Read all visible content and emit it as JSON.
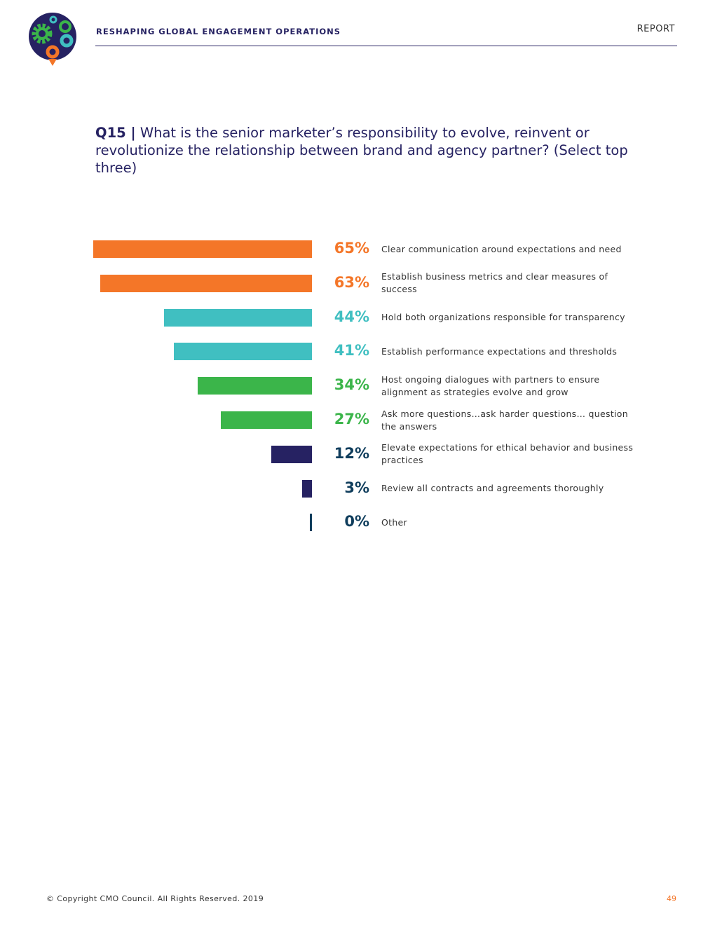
{
  "header": {
    "title": "RESHAPING GLOBAL ENGAGEMENT OPERATIONS",
    "section": "REPORT"
  },
  "question": {
    "number": "Q15 |",
    "text": " What is the senior marketer’s responsibility to evolve, reinvent or revolutionize the relationship between brand and agency partner? (Select top three)"
  },
  "chart_data": {
    "type": "bar",
    "orientation": "horizontal",
    "xlim": [
      0,
      65
    ],
    "categories": [
      "Clear communication around expectations and need",
      "Establish business metrics and clear measures of success",
      "Hold both organizations responsible for transparency",
      "Establish performance expectations and thresholds",
      "Host ongoing dialogues with partners to ensure alignment as strategies evolve and grow",
      "Ask more questions…ask harder questions… question the answers",
      "Elevate expectations for ethical behavior and business practices",
      "Review all contracts and agreements thoroughly",
      "Other"
    ],
    "values": [
      65,
      63,
      44,
      41,
      34,
      27,
      12,
      3,
      0
    ],
    "labels": [
      "65%",
      "63%",
      "44%",
      "41%",
      "34%",
      "27%",
      "12%",
      "3%",
      "0%"
    ],
    "bar_colors": [
      "#f47628",
      "#f47628",
      "#40bfc1",
      "#40bfc1",
      "#3bb54a",
      "#3bb54a",
      "#262262",
      "#262262",
      "#0f3d5c"
    ],
    "label_colors": [
      "#f47628",
      "#f47628",
      "#40bfc1",
      "#40bfc1",
      "#3bb54a",
      "#3bb54a",
      "#0f3d5c",
      "#0f3d5c",
      "#0f3d5c"
    ]
  },
  "footer": {
    "copyright": "© Copyright CMO Council. All Rights Reserved. 2019",
    "page": "49"
  }
}
